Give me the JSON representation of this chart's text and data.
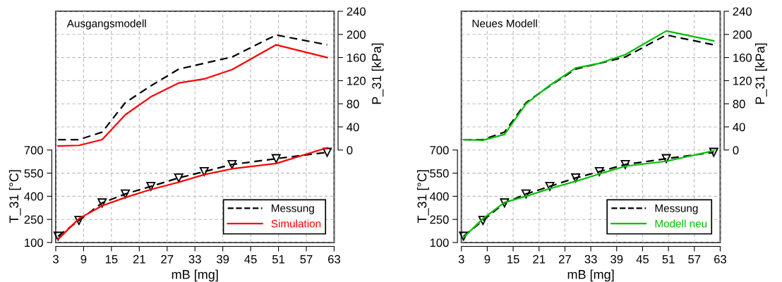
{
  "chart_data": [
    {
      "type": "line",
      "title": "Ausgangsmodell",
      "xlabel": "mB [mg]",
      "ylabel": "T_31 [°C]",
      "y2label": "P_31 [kPa]",
      "xlim": [
        3,
        63
      ],
      "xticks": [
        3,
        9,
        15,
        21,
        27,
        33,
        39,
        45,
        51,
        57,
        63
      ],
      "ylim": [
        100,
        1600
      ],
      "yticks": [
        100,
        250,
        400,
        550,
        700
      ],
      "y2lim": [
        -160,
        240
      ],
      "y2ticks": [
        0,
        40,
        80,
        120,
        160,
        200,
        240
      ],
      "x": [
        3.5,
        8,
        13,
        18,
        23.5,
        29.5,
        35,
        41,
        50.5,
        61.5
      ],
      "grid": true,
      "legend": "bottom right",
      "series": [
        {
          "name": "Messung",
          "color": "#000000",
          "axis": "y",
          "line_style": "dashed",
          "marker": "triangle",
          "values": [
            141,
            243,
            357,
            415,
            464,
            519,
            560,
            606,
            644,
            685
          ]
        },
        {
          "name": "Simulation",
          "color": "#ff0000",
          "axis": "y",
          "line_style": "solid",
          "values": [
            121,
            255,
            339,
            392,
            444,
            491,
            541,
            578,
            613,
            715
          ]
        },
        {
          "color": "#000000",
          "axis": "y2",
          "line_style": "dashed",
          "values": [
            18,
            18,
            31,
            82,
            111,
            140,
            150,
            161,
            199,
            182
          ]
        },
        {
          "color": "#ff0000",
          "axis": "y2",
          "line_style": "solid",
          "values": [
            7,
            8,
            18,
            61,
            92,
            116,
            123,
            139,
            182,
            160
          ]
        }
      ]
    },
    {
      "type": "line",
      "title": "Neues Modell",
      "xlabel": "mB [mg]",
      "ylabel": "T_31 [°C]",
      "y2label": "P_31 [kPa]",
      "xlim": [
        3,
        63
      ],
      "xticks": [
        3,
        9,
        15,
        21,
        27,
        33,
        39,
        45,
        51,
        57,
        63
      ],
      "ylim": [
        100,
        1600
      ],
      "yticks": [
        100,
        250,
        400,
        550,
        700
      ],
      "y2lim": [
        -160,
        240
      ],
      "y2ticks": [
        0,
        40,
        80,
        120,
        160,
        200,
        240
      ],
      "x": [
        3.5,
        8,
        13,
        18,
        23.5,
        29.5,
        35,
        41,
        50.5,
        61.5
      ],
      "grid": true,
      "legend": "bottom right",
      "series": [
        {
          "name": "Messung",
          "color": "#000000",
          "axis": "y",
          "line_style": "dashed",
          "marker": "triangle",
          "values": [
            141,
            243,
            357,
            415,
            464,
            519,
            560,
            606,
            644,
            685
          ]
        },
        {
          "name": "Modell neu",
          "color": "#00c000",
          "axis": "y",
          "line_style": "solid",
          "values": [
            133,
            255,
            360,
            400,
            450,
            497,
            545,
            595,
            627,
            695
          ]
        },
        {
          "color": "#000000",
          "axis": "y2",
          "line_style": "dashed",
          "values": [
            18,
            18,
            31,
            82,
            111,
            140,
            150,
            161,
            199,
            182
          ]
        },
        {
          "color": "#00c000",
          "axis": "y2",
          "line_style": "solid",
          "values": [
            18,
            17,
            27,
            80,
            112,
            142,
            150,
            165,
            206,
            189
          ]
        }
      ]
    }
  ]
}
